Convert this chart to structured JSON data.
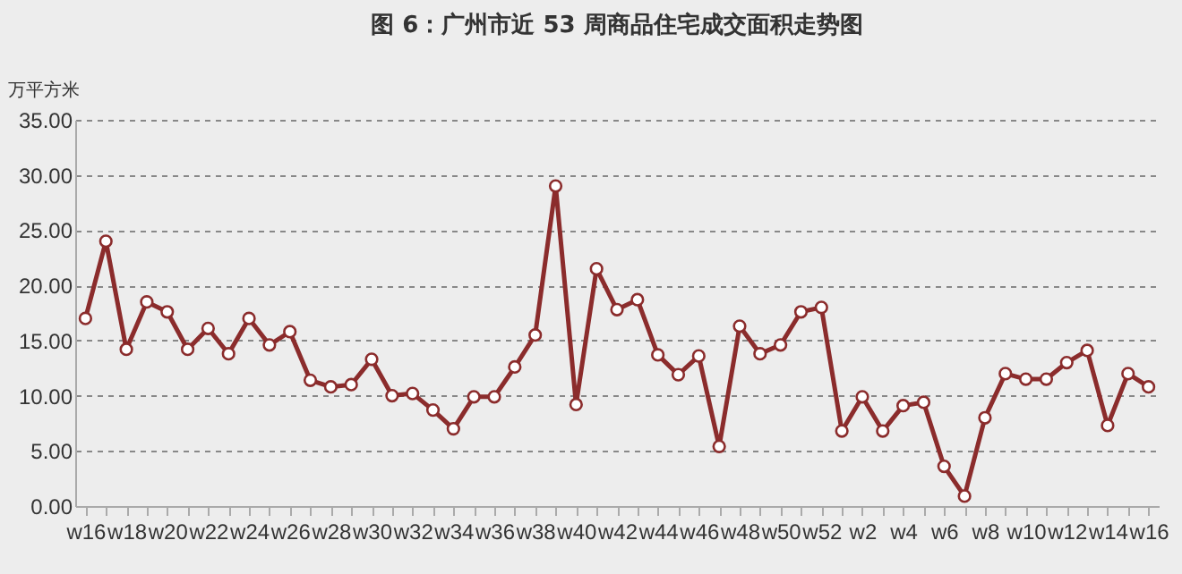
{
  "chart_data": {
    "type": "line",
    "title": "图 6：广州市近 53 周商品住宅成交面积走势图",
    "ylabel": "万平方米",
    "categories": [
      "w16",
      null,
      "w18",
      null,
      "w20",
      null,
      "w22",
      null,
      "w24",
      null,
      "w26",
      null,
      "w28",
      null,
      "w30",
      null,
      "w32",
      null,
      "w34",
      null,
      "w36",
      null,
      "w38",
      null,
      "w40",
      null,
      "w42",
      null,
      "w44",
      null,
      "w46",
      null,
      "w48",
      null,
      "w50",
      null,
      "w52",
      null,
      "w2",
      null,
      "w4",
      null,
      "w6",
      null,
      "w8",
      null,
      "w10",
      null,
      "w12",
      null,
      "w14",
      null,
      "w16"
    ],
    "series": [
      {
        "color": "#8b2c2c",
        "values": [
          17.0,
          24.0,
          14.2,
          18.5,
          17.6,
          14.2,
          16.1,
          13.8,
          17.0,
          14.6,
          15.8,
          11.4,
          10.8,
          11.0,
          13.3,
          10.0,
          10.2,
          8.7,
          7.0,
          9.9,
          9.9,
          12.6,
          15.5,
          29.0,
          9.2,
          21.5,
          17.8,
          18.7,
          13.7,
          11.9,
          13.6,
          5.4,
          16.3,
          13.8,
          14.6,
          17.6,
          18.0,
          6.8,
          9.9,
          6.8,
          9.1,
          9.4,
          3.6,
          0.9,
          8.0,
          12.0,
          11.5,
          11.5,
          13.0,
          14.1,
          7.3,
          12.0,
          10.8
        ]
      }
    ],
    "ylim": [
      0,
      35
    ],
    "yticks": [
      {
        "value": 0,
        "label": "0.00"
      },
      {
        "value": 5,
        "label": "5.00"
      },
      {
        "value": 10,
        "label": "10.00"
      },
      {
        "value": 15,
        "label": "15.00"
      },
      {
        "value": 20,
        "label": "20.00"
      },
      {
        "value": 25,
        "label": "25.00"
      },
      {
        "value": 30,
        "label": "30.00"
      },
      {
        "value": 35,
        "label": "35.00"
      }
    ],
    "grid": "y",
    "marker": "circle",
    "line_style": "solid"
  }
}
